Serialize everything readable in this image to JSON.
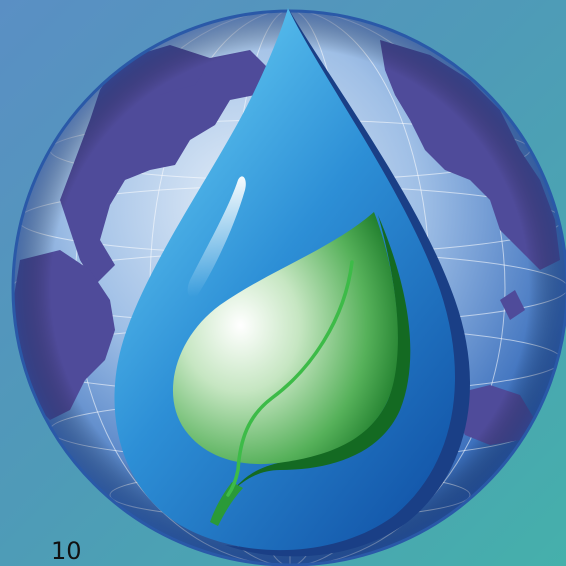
{
  "page": {
    "page_number": "10"
  },
  "artwork": {
    "name": "globe-water-drop-leaf-emblem",
    "icon": "water-drop-with-leaf-over-globe"
  },
  "colors": {
    "background": "#4f9ab8",
    "ocean_light": "#c9dcf2",
    "ocean_dark": "#2f5fa8",
    "continents": "#4f4b9a",
    "drop_light": "#5fc6ef",
    "drop_dark": "#1560b0",
    "leaf_light": "#ffffff",
    "leaf_dark": "#1f8a2e",
    "leaf_vein": "#3dbb48"
  }
}
